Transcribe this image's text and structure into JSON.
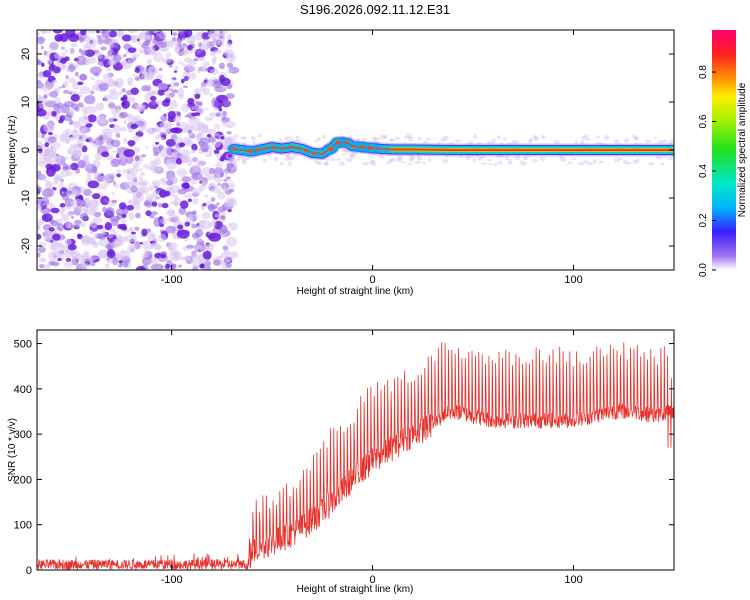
{
  "title": "S196.2026.092.11.12.E31",
  "colors": {
    "snr_line": "#e8302a",
    "axis": "#000000",
    "noise_dark": "#6a1bd9",
    "noise_light": "#d8c4f2"
  },
  "chart_data": [
    {
      "type": "heatmap",
      "name": "spectrogram",
      "xlabel": "Height of straight line (km)",
      "ylabel": "Frequency (Hz)",
      "xlim": [
        -167,
        150
      ],
      "ylim": [
        -25,
        25
      ],
      "xticks": [
        -100,
        0,
        100
      ],
      "xtick_labels": [
        "-100",
        "0",
        "100"
      ],
      "yticks": [
        -20,
        -10,
        0,
        10,
        20
      ],
      "ytick_labels": [
        "-20",
        "-10",
        "0",
        "10",
        "20"
      ],
      "noise_region_x": [
        -167,
        -69
      ],
      "signal_track": {
        "x": [
          -69,
          -60,
          -50,
          -45,
          -40,
          -35,
          -30,
          -25,
          -20,
          -18,
          -15,
          -12,
          -10,
          -5,
          0,
          5,
          10,
          20,
          40,
          60,
          80,
          100,
          120,
          150
        ],
        "freq": [
          0.2,
          -0.3,
          0.6,
          0.3,
          0.6,
          0.2,
          -0.6,
          -0.8,
          0.5,
          1.5,
          1.6,
          1.4,
          0.8,
          0.6,
          0.4,
          0.2,
          0.1,
          0.1,
          0.0,
          0.0,
          0.0,
          0.0,
          0.0,
          0.0
        ]
      },
      "colorbar": {
        "label": "Normalized spectral amplitude",
        "ticks": [
          0.0,
          0.2,
          0.4,
          0.6,
          0.8
        ],
        "tick_labels": [
          "0.0",
          "0.2",
          "0.4",
          "0.6",
          "0.8"
        ],
        "range": [
          0.0,
          0.97
        ]
      }
    },
    {
      "type": "line",
      "name": "snr",
      "xlabel": "Height of straight line (km)",
      "ylabel": "SNR (10 * v/v)",
      "xlim": [
        -167,
        150
      ],
      "ylim": [
        0,
        530
      ],
      "xticks": [
        -100,
        0,
        100
      ],
      "xtick_labels": [
        "-100",
        "0",
        "100"
      ],
      "yticks": [
        0,
        100,
        200,
        300,
        400,
        500
      ],
      "ytick_labels": [
        "0",
        "100",
        "200",
        "300",
        "400",
        "500"
      ],
      "series": [
        {
          "name": "SNR",
          "baseline_x": [
            -167,
            -62,
            -60,
            -50,
            -40,
            -30,
            -20,
            -10,
            0,
            10,
            20,
            30,
            35,
            40,
            50,
            60,
            70,
            80,
            90,
            100,
            110,
            120,
            130,
            140,
            150
          ],
          "baseline_y": [
            12,
            12,
            40,
            60,
            80,
            110,
            150,
            200,
            240,
            270,
            300,
            320,
            340,
            350,
            340,
            330,
            330,
            330,
            330,
            330,
            340,
            350,
            350,
            340,
            350
          ],
          "peak_envelope_y": [
            45,
            45,
            160,
            170,
            200,
            260,
            320,
            360,
            420,
            430,
            450,
            480,
            510,
            500,
            490,
            490,
            490,
            490,
            500,
            480,
            500,
            510,
            500,
            490,
            500
          ]
        }
      ]
    }
  ]
}
